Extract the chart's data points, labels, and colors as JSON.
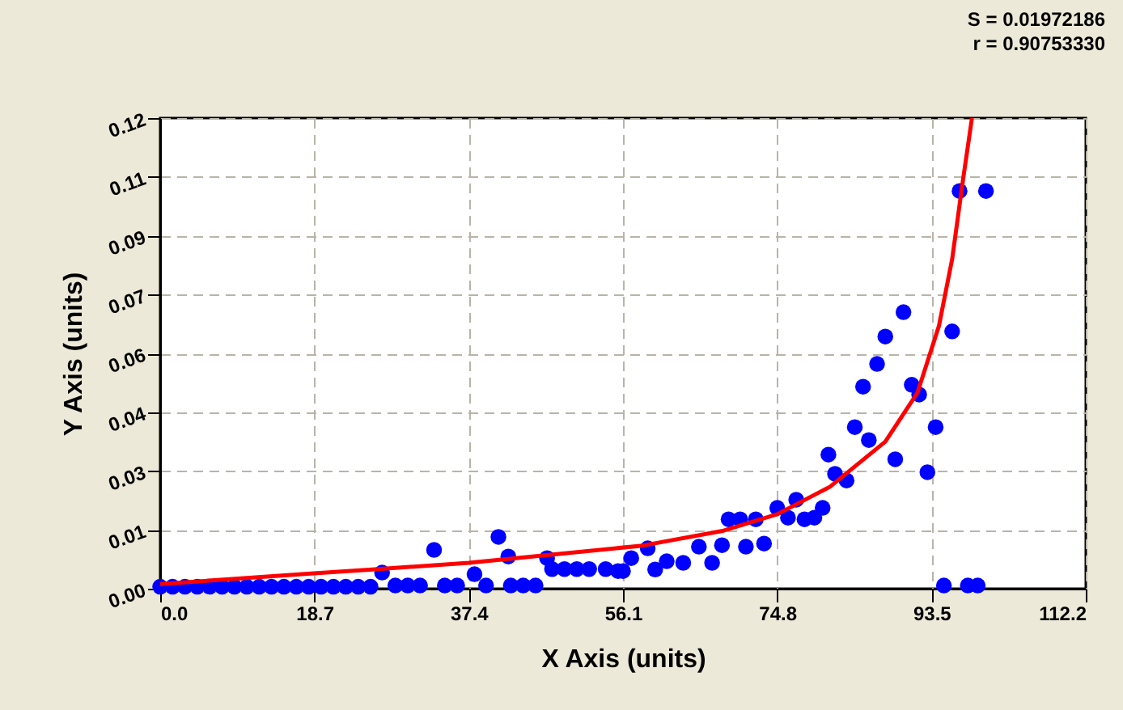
{
  "chart_data": {
    "type": "scatter",
    "xlabel": "X Axis (units)",
    "ylabel": "Y Axis (units)",
    "annotations": [
      "S = 0.01972186",
      "r = 0.90753330"
    ],
    "xlim": [
      0,
      112.2
    ],
    "ylim": [
      0,
      0.12
    ],
    "xticks": [
      {
        "value": 0,
        "label": "0.0"
      },
      18.7,
      37.4,
      56.1,
      74.8,
      93.5,
      112.2
    ],
    "yticks": [
      {
        "value": 0,
        "label": "0.00"
      },
      {
        "value": 0.015,
        "label": "0.01"
      },
      {
        "value": 0.03,
        "label": "0.03"
      },
      {
        "value": 0.045,
        "label": "0.04"
      },
      {
        "value": 0.06,
        "label": "0.06"
      },
      {
        "value": 0.075,
        "label": "0.07"
      },
      {
        "value": 0.09,
        "label": "0.09"
      },
      {
        "value": 0.105,
        "label": "0.11"
      },
      {
        "value": 0.12,
        "label": "0.12"
      }
    ],
    "grid": true,
    "marker": "circle",
    "series": [
      {
        "color": "#0000ff",
        "x": [
          0,
          1.5,
          3,
          4.5,
          6,
          7.5,
          9,
          10.5,
          12,
          13.5,
          15,
          16.5,
          18,
          19.5,
          21,
          22.5,
          24,
          25.5,
          26.9,
          28.5,
          30,
          31.5,
          33.2,
          34.5,
          36,
          38.1,
          39.5,
          41.0,
          42.2,
          42.5,
          44,
          45.5,
          46.9,
          47.5,
          49,
          50.5,
          52,
          54,
          55.5,
          56.1,
          57.1,
          59.1,
          60.0,
          61.4,
          63.4,
          65.3,
          66.9,
          68.1,
          68.9,
          70.3,
          71.0,
          72.2,
          73.2,
          74.8,
          76.1,
          77.1,
          78.1,
          79.3,
          80.3,
          81.0,
          81.8,
          83.2,
          84.2,
          85.2,
          85.9,
          86.9,
          87.9,
          89.1,
          90.1,
          91.1,
          92.0,
          93.0,
          94.0,
          95.0,
          96.0,
          96.9,
          97.9,
          99.1,
          100.1
        ],
        "values": [
          0.0005,
          0.0005,
          0.0005,
          0.0005,
          0.0005,
          0.0005,
          0.0005,
          0.0005,
          0.0005,
          0.0005,
          0.0005,
          0.0005,
          0.0005,
          0.0005,
          0.0005,
          0.0005,
          0.0005,
          0.0005,
          0.0041,
          0.0008,
          0.0008,
          0.0008,
          0.0099,
          0.0008,
          0.0008,
          0.0037,
          0.0008,
          0.0132,
          0.0082,
          0.0008,
          0.0008,
          0.0008,
          0.0078,
          0.005,
          0.005,
          0.005,
          0.005,
          0.005,
          0.0045,
          0.0045,
          0.0078,
          0.0103,
          0.0049,
          0.007,
          0.0066,
          0.0107,
          0.0066,
          0.0111,
          0.0177,
          0.0177,
          0.0107,
          0.0177,
          0.0115,
          0.0206,
          0.0181,
          0.0227,
          0.0177,
          0.0181,
          0.0206,
          0.0342,
          0.0293,
          0.0276,
          0.0412,
          0.0515,
          0.0379,
          0.0573,
          0.0643,
          0.033,
          0.0705,
          0.052,
          0.0495,
          0.0297,
          0.0412,
          0.0008,
          0.0656,
          0.1014,
          0.0008,
          0.0008,
          0.1014
        ]
      },
      {
        "type": "line",
        "color": "#ff0000",
        "line_style": "solid",
        "marker": "none",
        "x": [
          0,
          17.9,
          25.7,
          37.4,
          58.5,
          68.3,
          74.8,
          81.2,
          87.9,
          91.8,
          94.4,
          96.0,
          97.3,
          98.4
        ],
        "values": [
          0.0012,
          0.0038,
          0.0049,
          0.0066,
          0.011,
          0.0148,
          0.019,
          0.026,
          0.0375,
          0.05,
          0.067,
          0.084,
          0.104,
          0.12
        ]
      }
    ]
  }
}
